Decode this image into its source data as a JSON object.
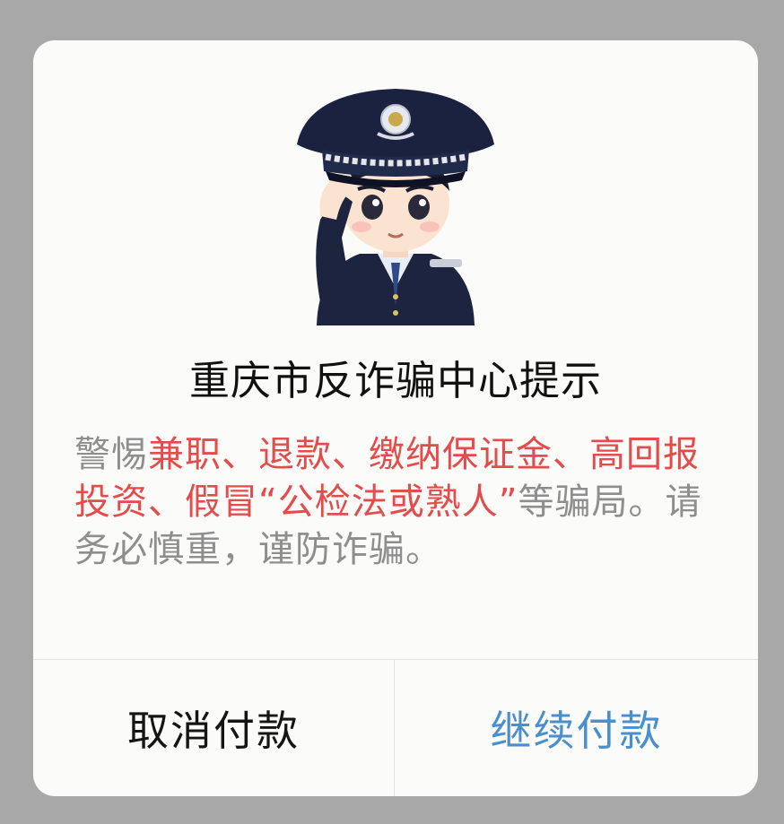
{
  "dialog": {
    "title": "重庆市反诈骗中心提示",
    "message": {
      "seg1": "警惕",
      "seg2": "兼职、退款、缴纳保证金、高回报投资、假冒“公检法或熟人”",
      "seg3": "等骗局。请务必慎重，谨防诈骗。"
    },
    "cancel_label": "取消付款",
    "continue_label": "继续付款"
  },
  "mascot": {
    "icon": "police-officer-saluting-icon"
  },
  "colors": {
    "backdrop": "#a8a8a8",
    "dialog_bg": "#fbfbf9",
    "title_text": "#111111",
    "message_text": "#8e8e8e",
    "highlight_text": "#e44b4b",
    "continue_text": "#4a8ecb"
  }
}
